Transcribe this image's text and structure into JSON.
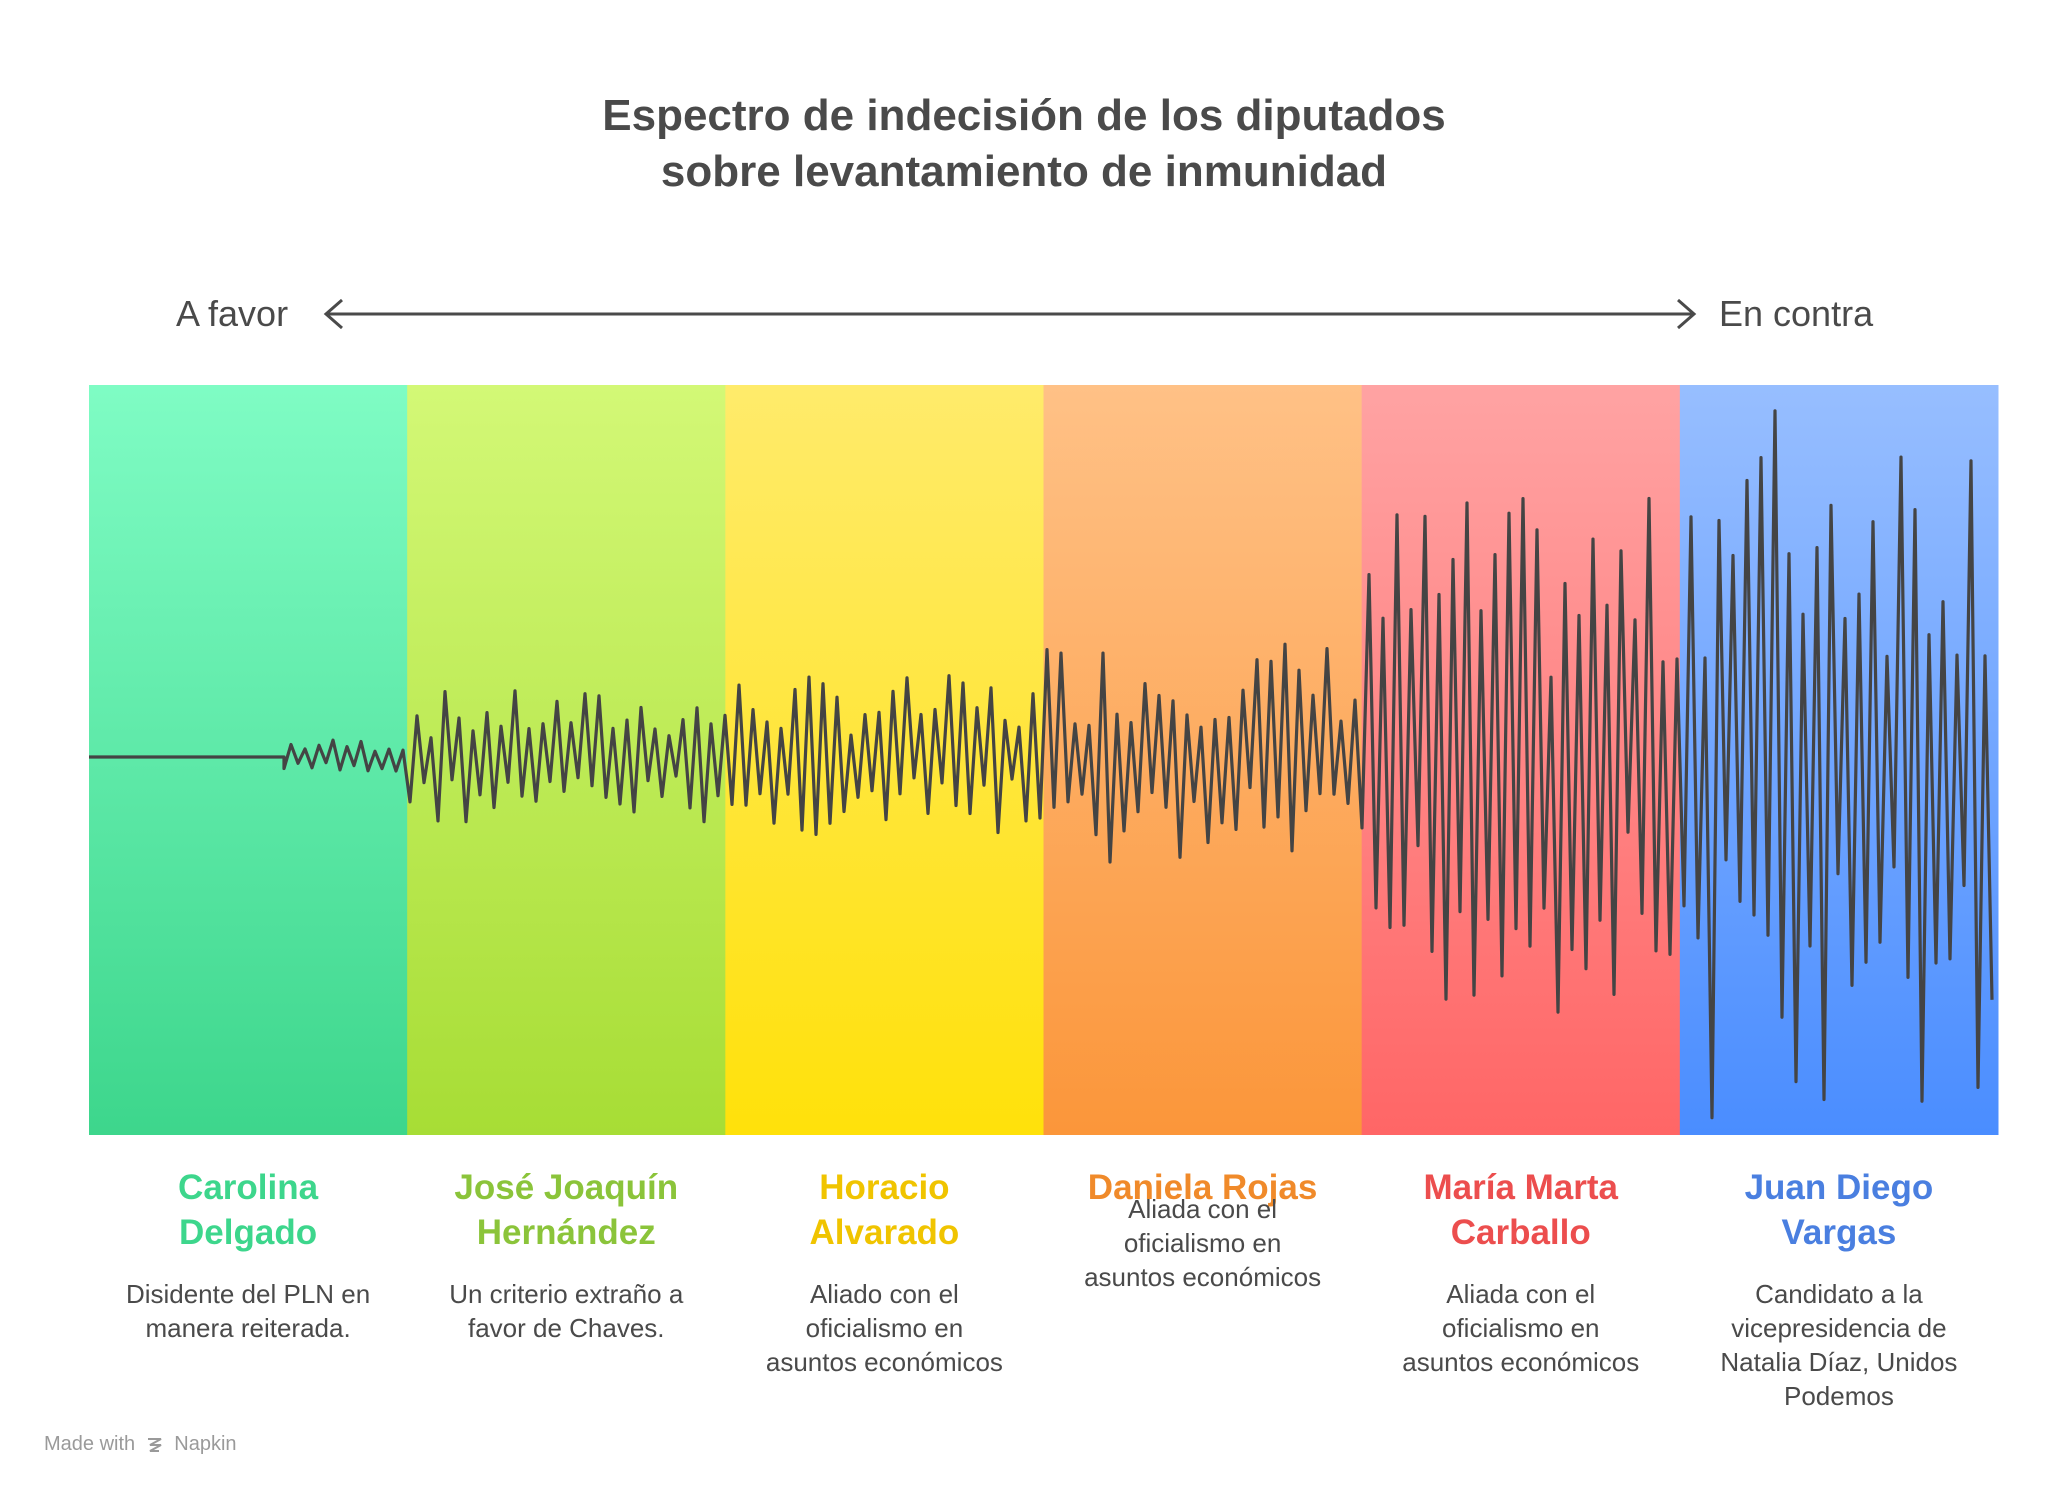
{
  "title": {
    "line1": "Espectro de indecisión de los diputados",
    "line2": "sobre levantamiento de inmunidad"
  },
  "axis": {
    "left_label": "A favor",
    "right_label": "En contra"
  },
  "segments": [
    {
      "name_line1": "Carolina",
      "name_line2": "Delgado",
      "desc": [
        "Disidente del PLN en",
        "manera reiterada."
      ],
      "color": "#3dd68c",
      "top": "#7ffcc4",
      "bottom": "#3dd68c",
      "amplitude": 0.05
    },
    {
      "name_line1": "José Joaquín",
      "name_line2": "Hernández",
      "desc": [
        "Un criterio extraño a",
        "favor de Chaves."
      ],
      "color": "#8bc43a",
      "top": "#d3f876",
      "bottom": "#a7dd35",
      "amplitude": 0.18
    },
    {
      "name_line1": "Horacio",
      "name_line2": "Alvarado",
      "desc": [
        "Aliado con el",
        "oficialismo en",
        "asuntos económicos"
      ],
      "color": "#f0c400",
      "top": "#ffeb6b",
      "bottom": "#ffe10a",
      "amplitude": 0.22
    },
    {
      "name_line1": "Daniela Rojas",
      "name_line2": "",
      "desc": [
        "Aliada con el",
        "oficialismo en",
        "asuntos económicos"
      ],
      "color": "#f08a2a",
      "top": "#ffc186",
      "bottom": "#fb963a",
      "amplitude": 0.32
    },
    {
      "name_line1": "María Marta",
      "name_line2": "Carballo",
      "desc": [
        "Aliada con el",
        "oficialismo en",
        "asuntos económicos"
      ],
      "color": "#ec4e4e",
      "top": "#ffa3a3",
      "bottom": "#ff6666",
      "amplitude": 0.7
    },
    {
      "name_line1": "Juan Diego",
      "name_line2": "Vargas",
      "desc": [
        "Candidato a la",
        "vicepresidencia de",
        "Natalia Díaz, Unidos",
        "Podemos"
      ],
      "color": "#4a7fe0",
      "top": "#97beff",
      "bottom": "#4a8dff",
      "amplitude": 1.0
    }
  ],
  "footer": {
    "made_with": "Made with",
    "brand": "Napkin"
  }
}
